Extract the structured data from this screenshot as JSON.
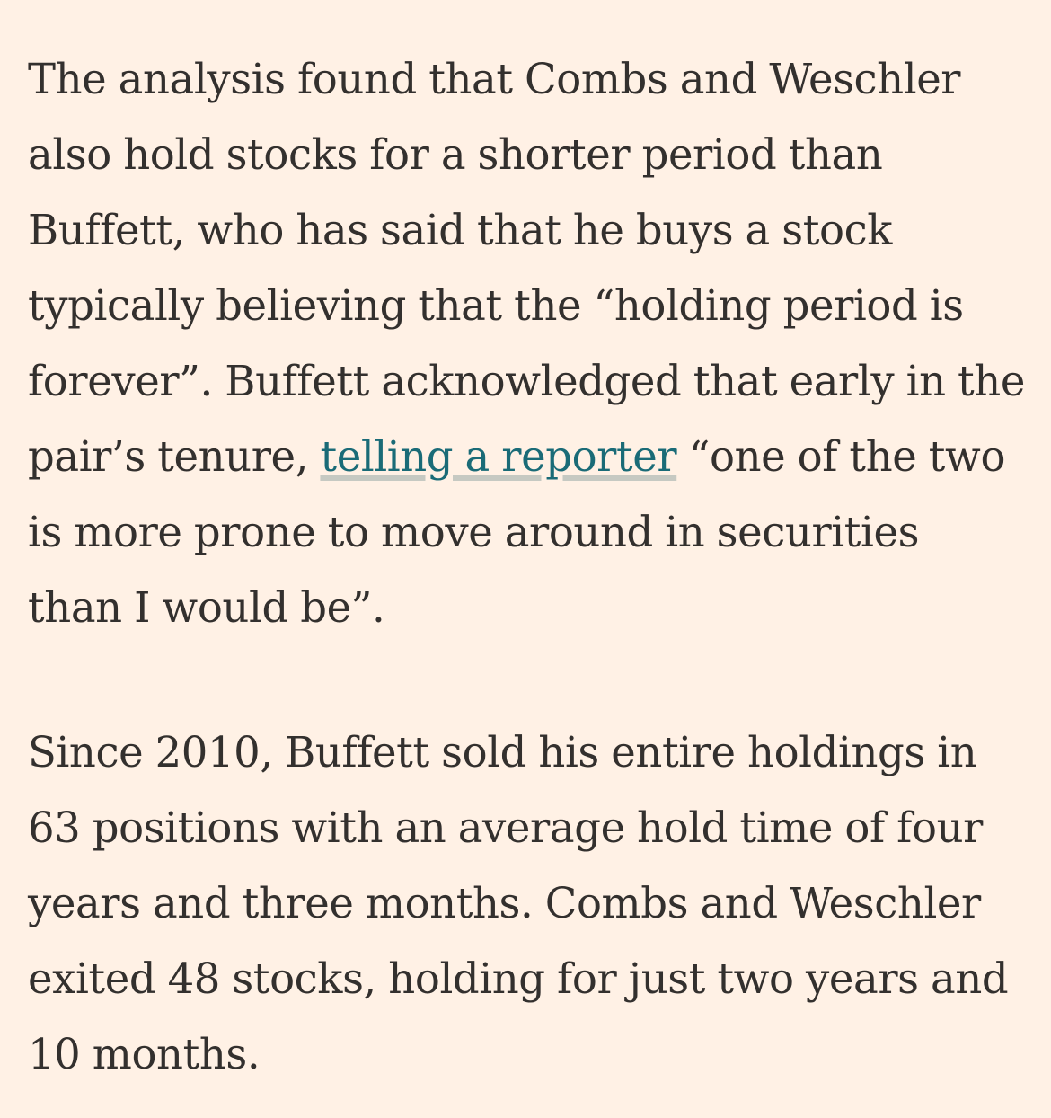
{
  "article": {
    "paragraph_1": {
      "before_link": "The analysis found that Combs and Weschler also hold stocks for a shorter period than Buffett, who has said that he buys a stock typically believing that the “holding period is forever”. Buffett acknowledged that early in the pair’s tenure, ",
      "link_text": "telling a reporter",
      "after_link": " “one of the two is more prone to move around in securities than I would be”."
    },
    "paragraph_2": {
      "text": "Since 2010, Buffett sold his entire holdings in 63 positions with an average hold time of four years and three months. Combs and Weschler exited 48 stocks, holding for just two years and 10 months."
    }
  },
  "colors": {
    "background": "#FFF1E5",
    "text": "#33302E",
    "link": "#1A6B77",
    "link_underline": "#C9D3CC"
  }
}
